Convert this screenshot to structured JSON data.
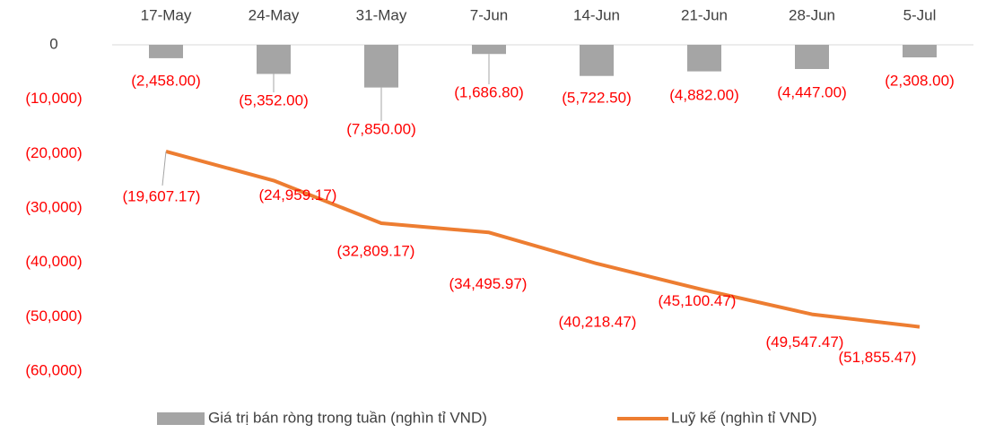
{
  "chart_data": {
    "type": "bar_line",
    "categories": [
      "17-May",
      "24-May",
      "31-May",
      "7-Jun",
      "14-Jun",
      "21-Jun",
      "28-Jun",
      "5-Jul"
    ],
    "series": [
      {
        "name": "Giá trị bán ròng trong tuần (nghìn tỉ VND)",
        "type": "bar",
        "color": "#a5a5a5",
        "values": [
          -2458.0,
          -5352.0,
          -7850.0,
          -1686.8,
          -5722.5,
          -4882.0,
          -4447.0,
          -2308.0
        ],
        "value_labels": [
          "(2,458.00)",
          "(5,352.00)",
          "(7,850.00)",
          "(1,686.80)",
          "(5,722.50)",
          "(4,882.00)",
          "(4,447.00)",
          "(2,308.00)"
        ]
      },
      {
        "name": "Luỹ kế (nghìn tỉ VND)",
        "type": "line",
        "color": "#ed7d31",
        "values": [
          -19607.17,
          -24959.17,
          -32809.17,
          -34495.97,
          -40218.47,
          -45100.47,
          -49547.47,
          -51855.47
        ],
        "value_labels": [
          "(19,607.17)",
          "(24,959.17)",
          "(32,809.17)",
          "(34,495.97)",
          "(40,218.47)",
          "(45,100.47)",
          "(49,547.47)",
          "(51,855.47)"
        ]
      }
    ],
    "ylim": [
      -60000,
      0
    ],
    "yticks": [
      0,
      {
        "value": -10000,
        "label": "(10,000)"
      },
      {
        "value": -20000,
        "label": "(20,000)"
      },
      {
        "value": -30000,
        "label": "(30,000)"
      },
      {
        "value": -40000,
        "label": "(40,000)"
      },
      {
        "value": -50000,
        "label": "(50,000)"
      },
      {
        "value": -60000,
        "label": "(60,000)"
      }
    ],
    "legend": "bottom"
  }
}
